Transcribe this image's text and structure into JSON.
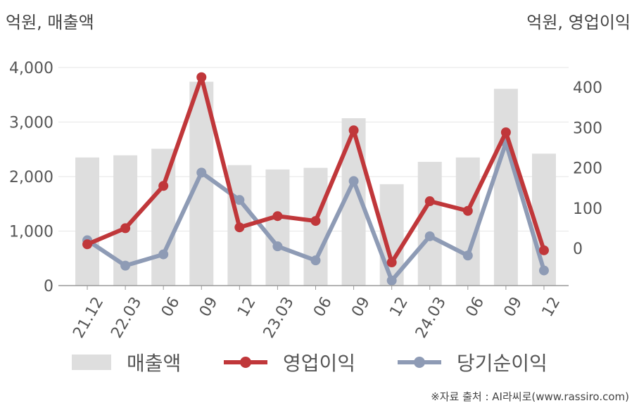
{
  "units": {
    "left": "억원, 매출액",
    "right": "억원, 영업이익"
  },
  "legend": {
    "revenue": "매출액",
    "operating": "영업이익",
    "net": "당기순이익"
  },
  "source": "※자료 출처 : AI라씨로(www.rassiro.com)",
  "colors": {
    "revenue": "#dedede",
    "operating": "#c0373a",
    "net": "#8e9bb5"
  },
  "chart_data": {
    "type": "bar",
    "categories": [
      "21.12",
      "22.03",
      "06",
      "09",
      "12",
      "23.03",
      "06",
      "09",
      "12",
      "24.03",
      "06",
      "09",
      "12"
    ],
    "left_axis": {
      "min": 0,
      "max": 4000,
      "ticks": [
        0,
        1000,
        2000,
        3000,
        4000
      ],
      "tick_labels": [
        "0",
        "1,000",
        "2,000",
        "3,000",
        "4,000"
      ]
    },
    "right_axis": {
      "ticks": [
        0,
        100,
        200,
        300,
        400
      ],
      "tick_labels": [
        "0",
        "100",
        "200",
        "300",
        "400"
      ]
    },
    "series": [
      {
        "name": "매출액",
        "type": "bar",
        "axis": "left",
        "values": [
          2350,
          2390,
          2510,
          3740,
          2210,
          2130,
          2160,
          3070,
          1860,
          2270,
          2350,
          3610,
          2420
        ]
      },
      {
        "name": "영업이익",
        "type": "line",
        "axis": "right",
        "values": [
          10,
          50,
          155,
          425,
          52,
          80,
          68,
          293,
          -35,
          117,
          93,
          288,
          -5
        ]
      },
      {
        "name": "당기순이익",
        "type": "line",
        "axis": "right",
        "values": [
          20,
          -43,
          -15,
          188,
          120,
          5,
          -30,
          167,
          -80,
          30,
          -18,
          262,
          -55
        ]
      }
    ],
    "grid": true,
    "legend_position": "bottom"
  }
}
